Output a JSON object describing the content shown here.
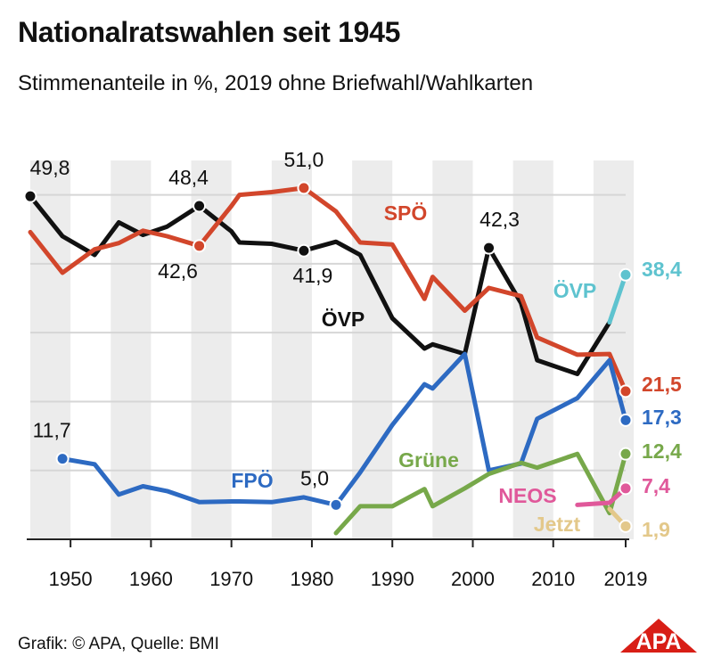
{
  "header": {
    "title": "Nationalratswahlen seit 1945",
    "subtitle": "Stimmenanteile in %, 2019 ohne Briefwahl/Wahlkarten"
  },
  "footer": {
    "source": "Grafik: © APA, Quelle: BMI",
    "logo_text": "APA"
  },
  "colors": {
    "OEVP": "#111111",
    "SPOE": "#d2462b",
    "FPOE": "#2d6ac2",
    "Gruene": "#77a84a",
    "NEOS": "#e0589a",
    "Jetzt": "#e3c88a",
    "OEVP_2019": "#5ec3cf",
    "band": "#ececec",
    "grid": "#d6d6d6",
    "logo": "#d81e16"
  },
  "chart_data": {
    "type": "line",
    "xlim": [
      1945,
      2019
    ],
    "ylim": [
      0,
      55
    ],
    "x_ticks": [
      "1950",
      "1960",
      "1970",
      "1980",
      "1990",
      "2000",
      "2010",
      "2019"
    ],
    "series": [
      {
        "name": "ÖVP",
        "key": "OEVP",
        "x": [
          1945,
          1949,
          1953,
          1956,
          1959,
          1962,
          1966,
          1970,
          1971,
          1975,
          1979,
          1983,
          1986,
          1990,
          1994,
          1995,
          1999,
          2002,
          2006,
          2008,
          2013,
          2017
        ],
        "y": [
          49.8,
          44.0,
          41.3,
          46.0,
          44.2,
          45.4,
          48.4,
          44.7,
          43.1,
          42.9,
          41.9,
          43.2,
          41.3,
          32.1,
          27.7,
          28.3,
          26.9,
          42.3,
          34.3,
          26.0,
          24.0,
          31.5
        ]
      },
      {
        "name": "ÖVP",
        "key": "OEVP_2019",
        "x": [
          2017,
          2019
        ],
        "y": [
          31.5,
          38.4
        ]
      },
      {
        "name": "SPÖ",
        "key": "SPOE",
        "x": [
          1945,
          1949,
          1953,
          1956,
          1959,
          1962,
          1966,
          1970,
          1971,
          1975,
          1979,
          1983,
          1986,
          1990,
          1994,
          1995,
          1999,
          2002,
          2006,
          2008,
          2013,
          2017,
          2019
        ],
        "y": [
          44.6,
          38.7,
          42.1,
          43.0,
          44.8,
          44.0,
          42.6,
          48.4,
          50.0,
          50.4,
          51.0,
          47.6,
          43.1,
          42.8,
          34.9,
          38.1,
          33.2,
          36.5,
          35.3,
          29.3,
          26.8,
          26.9,
          21.5
        ]
      },
      {
        "name": "FPÖ",
        "key": "FPOE",
        "x": [
          1949,
          1953,
          1956,
          1959,
          1962,
          1966,
          1970,
          1971,
          1975,
          1979,
          1983,
          1986,
          1990,
          1994,
          1995,
          1999,
          2002,
          2006,
          2008,
          2013,
          2017,
          2019
        ],
        "y": [
          11.7,
          10.9,
          6.5,
          7.7,
          7.0,
          5.4,
          5.5,
          5.5,
          5.4,
          6.1,
          5.0,
          9.7,
          16.6,
          22.5,
          21.9,
          26.9,
          10.0,
          11.0,
          17.5,
          20.5,
          26.0,
          17.3
        ]
      },
      {
        "name": "Grüne",
        "key": "Gruene",
        "x": [
          1983,
          1986,
          1990,
          1994,
          1995,
          1999,
          2002,
          2006,
          2008,
          2013,
          2017,
          2019
        ],
        "y": [
          0.9,
          4.8,
          4.8,
          7.3,
          4.8,
          7.4,
          9.5,
          11.1,
          10.4,
          12.4,
          3.8,
          12.4
        ]
      },
      {
        "name": "NEOS",
        "key": "NEOS",
        "x": [
          2013,
          2017,
          2019
        ],
        "y": [
          5.0,
          5.3,
          7.4
        ]
      },
      {
        "name": "Jetzt",
        "key": "Jetzt",
        "x": [
          2017,
          2019
        ],
        "y": [
          4.4,
          1.9
        ]
      }
    ],
    "annotations": [
      {
        "text": "49,8",
        "x": 1945,
        "y": 49.8,
        "series": "OEVP"
      },
      {
        "text": "48,4",
        "x": 1966,
        "y": 48.4,
        "series": "OEVP"
      },
      {
        "text": "41,9",
        "x": 1979,
        "y": 41.9,
        "series": "OEVP"
      },
      {
        "text": "42,3",
        "x": 2002,
        "y": 42.3,
        "series": "OEVP"
      },
      {
        "text": "42,6",
        "x": 1966,
        "y": 42.6,
        "series": "SPOE"
      },
      {
        "text": "51,0",
        "x": 1979,
        "y": 51.0,
        "series": "SPOE"
      },
      {
        "text": "11,7",
        "x": 1949,
        "y": 11.7,
        "series": "FPOE"
      },
      {
        "text": "5,0",
        "x": 1983,
        "y": 5.0,
        "series": "FPOE"
      }
    ],
    "end_values": [
      {
        "text": "38,4",
        "y": 38.4,
        "series": "OEVP_2019"
      },
      {
        "text": "21,5",
        "y": 21.5,
        "series": "SPOE"
      },
      {
        "text": "17,3",
        "y": 17.3,
        "series": "FPOE"
      },
      {
        "text": "12,4",
        "y": 12.4,
        "series": "Gruene"
      },
      {
        "text": "7,4",
        "y": 7.4,
        "series": "NEOS"
      },
      {
        "text": "1,9",
        "y": 1.9,
        "series": "Jetzt"
      }
    ],
    "series_labels": [
      {
        "text": "SPÖ",
        "series": "SPOE"
      },
      {
        "text": "ÖVP",
        "series": "OEVP"
      },
      {
        "text": "ÖVP",
        "series": "OEVP_2019"
      },
      {
        "text": "FPÖ",
        "series": "FPOE"
      },
      {
        "text": "Grüne",
        "series": "Gruene"
      },
      {
        "text": "NEOS",
        "series": "NEOS"
      },
      {
        "text": "Jetzt",
        "series": "Jetzt"
      }
    ]
  }
}
